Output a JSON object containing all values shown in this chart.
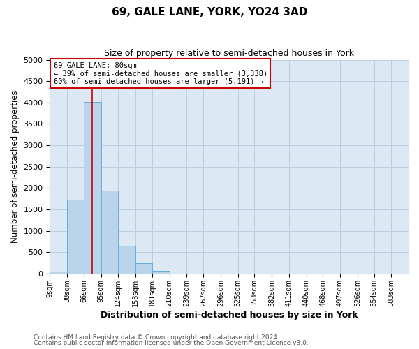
{
  "title": "69, GALE LANE, YORK, YO24 3AD",
  "subtitle": "Size of property relative to semi-detached houses in York",
  "xlabel": "Distribution of semi-detached houses by size in York",
  "ylabel": "Number of semi-detached properties",
  "bin_labels": [
    "9sqm",
    "38sqm",
    "66sqm",
    "95sqm",
    "124sqm",
    "153sqm",
    "181sqm",
    "210sqm",
    "239sqm",
    "267sqm",
    "296sqm",
    "325sqm",
    "353sqm",
    "382sqm",
    "411sqm",
    "440sqm",
    "468sqm",
    "497sqm",
    "526sqm",
    "554sqm",
    "583sqm"
  ],
  "bin_edges": [
    9,
    38,
    66,
    95,
    124,
    153,
    181,
    210,
    239,
    267,
    296,
    325,
    353,
    382,
    411,
    440,
    468,
    497,
    526,
    554,
    583
  ],
  "bar_heights": [
    50,
    1730,
    4020,
    1940,
    650,
    240,
    70,
    0,
    0,
    0,
    0,
    0,
    0,
    0,
    0,
    0,
    0,
    0,
    0,
    0
  ],
  "bar_color": "#bad4eb",
  "bar_edge_color": "#6aaed6",
  "vline_x": 80,
  "vline_color": "#cc0000",
  "ylim": [
    0,
    5000
  ],
  "yticks": [
    0,
    500,
    1000,
    1500,
    2000,
    2500,
    3000,
    3500,
    4000,
    4500,
    5000
  ],
  "annotation_title": "69 GALE LANE: 80sqm",
  "annotation_line1": "← 39% of semi-detached houses are smaller (3,338)",
  "annotation_line2": "60% of semi-detached houses are larger (5,191) →",
  "annotation_box_color": "#ffffff",
  "annotation_box_edge": "#cc0000",
  "footer1": "Contains HM Land Registry data © Crown copyright and database right 2024.",
  "footer2": "Contains public sector information licensed under the Open Government Licence v3.0.",
  "background_color": "#ffffff",
  "axes_bg_color": "#dce9f5",
  "grid_color": "#b8cfe0"
}
